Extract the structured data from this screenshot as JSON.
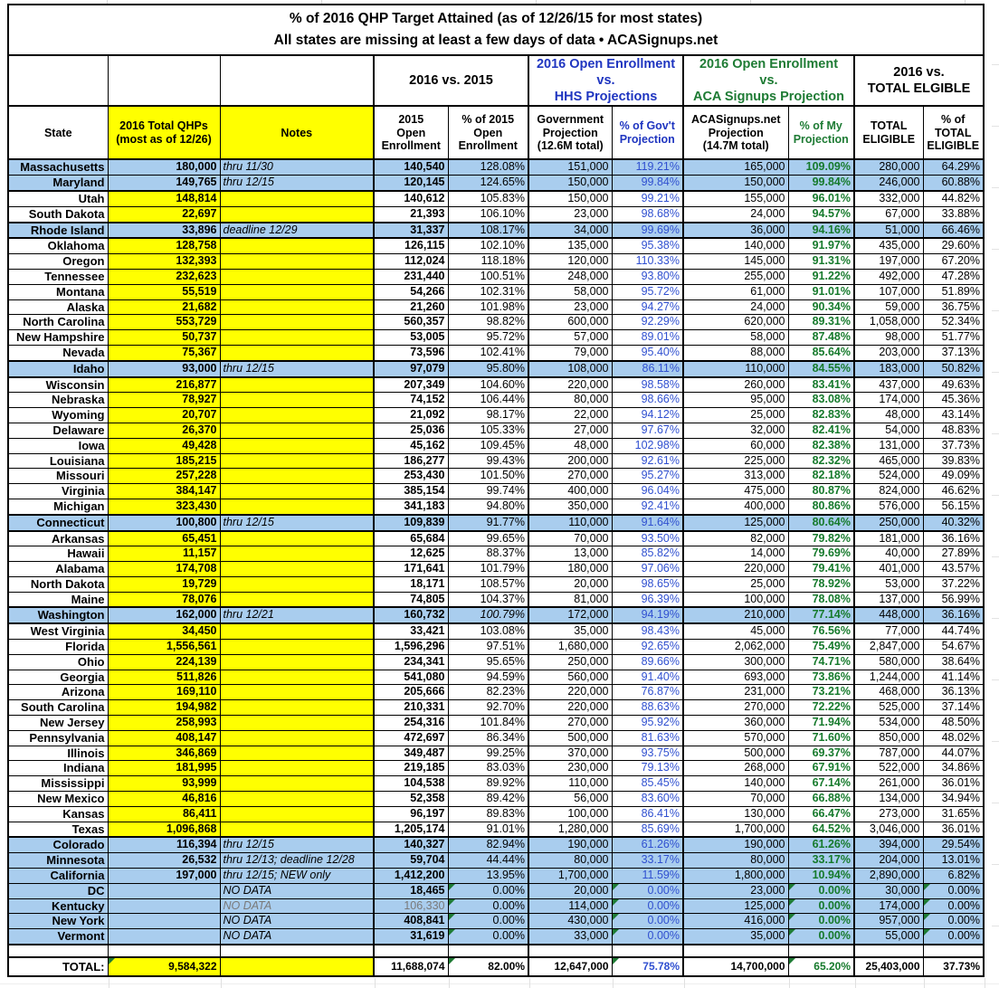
{
  "title": {
    "text": "% of 2016 QHP Target Attained (as of 12/26/15 for most states)\nAll states are missing at least a few days of data • ACASignups.net"
  },
  "groups": {
    "vs_2015": "2016 vs. 2015",
    "vs_hhs": "2016 Open Enrollment\nvs.\nHHS Projections",
    "vs_acasignups": "2016 Open Enrollment\nvs.\nACA Signups Projection",
    "vs_total_eligible": "2016 vs.\nTOTAL ELGIBLE"
  },
  "columns": [
    "State",
    "2016 Total QHPs\n(most as of 12/26)",
    "Notes",
    "2015\nOpen\nEnrollment",
    "% of 2015\nOpen\nEnrollment",
    "Government\nProjection\n(12.6M total)",
    "% of Gov't\nProjection",
    "ACASignups.net\nProjection\n(14.7M total)",
    "% of My\nProjection",
    "TOTAL\nELIGIBLE",
    "% of\nTOTAL\nELIGIBLE"
  ],
  "colors": {
    "row_highlight_blue": "#A9CDEE",
    "cell_yellow": "#FFFF00",
    "pct_gov_text_blue": "#3050D0",
    "header_hhs_blue": "#1F35C0",
    "pct_my_text_green": "#167A2C",
    "header_acas_green": "#1E7B34",
    "muted_gray": "#7a7a7a",
    "formula_flag_green": "#1E7B34"
  },
  "rows": [
    {
      "state": "Massachusetts",
      "qhp": "180,000",
      "notes": "thru 11/30",
      "e2015": "140,540",
      "p2015": "128.08%",
      "gov": "151,000",
      "pgov": "119.21%",
      "acas": "165,000",
      "pmy": "109.09%",
      "elig": "280,000",
      "pelig": "64.29%",
      "blue": true
    },
    {
      "state": "Maryland",
      "qhp": "149,765",
      "notes": "thru 12/15",
      "e2015": "120,145",
      "p2015": "124.65%",
      "gov": "150,000",
      "pgov": "99.84%",
      "acas": "150,000",
      "pmy": "99.84%",
      "elig": "246,000",
      "pelig": "60.88%",
      "blue": true
    },
    {
      "state": "Utah",
      "qhp": "148,814",
      "notes": "",
      "e2015": "140,612",
      "p2015": "105.83%",
      "gov": "150,000",
      "pgov": "99.21%",
      "acas": "155,000",
      "pmy": "96.01%",
      "elig": "332,000",
      "pelig": "44.82%"
    },
    {
      "state": "South Dakota",
      "qhp": "22,697",
      "notes": "",
      "e2015": "21,393",
      "p2015": "106.10%",
      "gov": "23,000",
      "pgov": "98.68%",
      "acas": "24,000",
      "pmy": "94.57%",
      "elig": "67,000",
      "pelig": "33.88%"
    },
    {
      "state": "Rhode Island",
      "qhp": "33,896",
      "notes": "deadline 12/29",
      "e2015": "31,337",
      "p2015": "108.17%",
      "gov": "34,000",
      "pgov": "99.69%",
      "acas": "36,000",
      "pmy": "94.16%",
      "elig": "51,000",
      "pelig": "66.46%",
      "blue": true
    },
    {
      "state": "Oklahoma",
      "qhp": "128,758",
      "notes": "",
      "e2015": "126,115",
      "p2015": "102.10%",
      "gov": "135,000",
      "pgov": "95.38%",
      "acas": "140,000",
      "pmy": "91.97%",
      "elig": "435,000",
      "pelig": "29.60%"
    },
    {
      "state": "Oregon",
      "qhp": "132,393",
      "notes": "",
      "e2015": "112,024",
      "p2015": "118.18%",
      "gov": "120,000",
      "pgov": "110.33%",
      "acas": "145,000",
      "pmy": "91.31%",
      "elig": "197,000",
      "pelig": "67.20%"
    },
    {
      "state": "Tennessee",
      "qhp": "232,623",
      "notes": "",
      "e2015": "231,440",
      "p2015": "100.51%",
      "gov": "248,000",
      "pgov": "93.80%",
      "acas": "255,000",
      "pmy": "91.22%",
      "elig": "492,000",
      "pelig": "47.28%"
    },
    {
      "state": "Montana",
      "qhp": "55,519",
      "notes": "",
      "e2015": "54,266",
      "p2015": "102.31%",
      "gov": "58,000",
      "pgov": "95.72%",
      "acas": "61,000",
      "pmy": "91.01%",
      "elig": "107,000",
      "pelig": "51.89%"
    },
    {
      "state": "Alaska",
      "qhp": "21,682",
      "notes": "",
      "e2015": "21,260",
      "p2015": "101.98%",
      "gov": "23,000",
      "pgov": "94.27%",
      "acas": "24,000",
      "pmy": "90.34%",
      "elig": "59,000",
      "pelig": "36.75%"
    },
    {
      "state": "North Carolina",
      "qhp": "553,729",
      "notes": "",
      "e2015": "560,357",
      "p2015": "98.82%",
      "gov": "600,000",
      "pgov": "92.29%",
      "acas": "620,000",
      "pmy": "89.31%",
      "elig": "1,058,000",
      "pelig": "52.34%"
    },
    {
      "state": "New Hampshire",
      "qhp": "50,737",
      "notes": "",
      "e2015": "53,005",
      "p2015": "95.72%",
      "gov": "57,000",
      "pgov": "89.01%",
      "acas": "58,000",
      "pmy": "87.48%",
      "elig": "98,000",
      "pelig": "51.77%"
    },
    {
      "state": "Nevada",
      "qhp": "75,367",
      "notes": "",
      "e2015": "73,596",
      "p2015": "102.41%",
      "gov": "79,000",
      "pgov": "95.40%",
      "acas": "88,000",
      "pmy": "85.64%",
      "elig": "203,000",
      "pelig": "37.13%"
    },
    {
      "state": "Idaho",
      "qhp": "93,000",
      "notes": "thru 12/15",
      "e2015": "97,079",
      "p2015": "95.80%",
      "gov": "108,000",
      "pgov": "86.11%",
      "acas": "110,000",
      "pmy": "84.55%",
      "elig": "183,000",
      "pelig": "50.82%",
      "blue": true
    },
    {
      "state": "Wisconsin",
      "qhp": "216,877",
      "notes": "",
      "e2015": "207,349",
      "p2015": "104.60%",
      "gov": "220,000",
      "pgov": "98.58%",
      "acas": "260,000",
      "pmy": "83.41%",
      "elig": "437,000",
      "pelig": "49.63%"
    },
    {
      "state": "Nebraska",
      "qhp": "78,927",
      "notes": "",
      "e2015": "74,152",
      "p2015": "106.44%",
      "gov": "80,000",
      "pgov": "98.66%",
      "acas": "95,000",
      "pmy": "83.08%",
      "elig": "174,000",
      "pelig": "45.36%"
    },
    {
      "state": "Wyoming",
      "qhp": "20,707",
      "notes": "",
      "e2015": "21,092",
      "p2015": "98.17%",
      "gov": "22,000",
      "pgov": "94.12%",
      "acas": "25,000",
      "pmy": "82.83%",
      "elig": "48,000",
      "pelig": "43.14%"
    },
    {
      "state": "Delaware",
      "qhp": "26,370",
      "notes": "",
      "e2015": "25,036",
      "p2015": "105.33%",
      "gov": "27,000",
      "pgov": "97.67%",
      "acas": "32,000",
      "pmy": "82.41%",
      "elig": "54,000",
      "pelig": "48.83%"
    },
    {
      "state": "Iowa",
      "qhp": "49,428",
      "notes": "",
      "e2015": "45,162",
      "p2015": "109.45%",
      "gov": "48,000",
      "pgov": "102.98%",
      "acas": "60,000",
      "pmy": "82.38%",
      "elig": "131,000",
      "pelig": "37.73%"
    },
    {
      "state": "Louisiana",
      "qhp": "185,215",
      "notes": "",
      "e2015": "186,277",
      "p2015": "99.43%",
      "gov": "200,000",
      "pgov": "92.61%",
      "acas": "225,000",
      "pmy": "82.32%",
      "elig": "465,000",
      "pelig": "39.83%"
    },
    {
      "state": "Missouri",
      "qhp": "257,228",
      "notes": "",
      "e2015": "253,430",
      "p2015": "101.50%",
      "gov": "270,000",
      "pgov": "95.27%",
      "acas": "313,000",
      "pmy": "82.18%",
      "elig": "524,000",
      "pelig": "49.09%"
    },
    {
      "state": "Virginia",
      "qhp": "384,147",
      "notes": "",
      "e2015": "385,154",
      "p2015": "99.74%",
      "gov": "400,000",
      "pgov": "96.04%",
      "acas": "475,000",
      "pmy": "80.87%",
      "elig": "824,000",
      "pelig": "46.62%"
    },
    {
      "state": "Michigan",
      "qhp": "323,430",
      "notes": "",
      "e2015": "341,183",
      "p2015": "94.80%",
      "gov": "350,000",
      "pgov": "92.41%",
      "acas": "400,000",
      "pmy": "80.86%",
      "elig": "576,000",
      "pelig": "56.15%"
    },
    {
      "state": "Connecticut",
      "qhp": "100,800",
      "notes": "thru 12/15",
      "e2015": "109,839",
      "p2015": "91.77%",
      "gov": "110,000",
      "pgov": "91.64%",
      "acas": "125,000",
      "pmy": "80.64%",
      "elig": "250,000",
      "pelig": "40.32%",
      "blue": true
    },
    {
      "state": "Arkansas",
      "qhp": "65,451",
      "notes": "",
      "e2015": "65,684",
      "p2015": "99.65%",
      "gov": "70,000",
      "pgov": "93.50%",
      "acas": "82,000",
      "pmy": "79.82%",
      "elig": "181,000",
      "pelig": "36.16%"
    },
    {
      "state": "Hawaii",
      "qhp": "11,157",
      "notes": "",
      "e2015": "12,625",
      "p2015": "88.37%",
      "gov": "13,000",
      "pgov": "85.82%",
      "acas": "14,000",
      "pmy": "79.69%",
      "elig": "40,000",
      "pelig": "27.89%"
    },
    {
      "state": "Alabama",
      "qhp": "174,708",
      "notes": "",
      "e2015": "171,641",
      "p2015": "101.79%",
      "gov": "180,000",
      "pgov": "97.06%",
      "acas": "220,000",
      "pmy": "79.41%",
      "elig": "401,000",
      "pelig": "43.57%"
    },
    {
      "state": "North Dakota",
      "qhp": "19,729",
      "notes": "",
      "e2015": "18,171",
      "p2015": "108.57%",
      "gov": "20,000",
      "pgov": "98.65%",
      "acas": "25,000",
      "pmy": "78.92%",
      "elig": "53,000",
      "pelig": "37.22%"
    },
    {
      "state": "Maine",
      "qhp": "78,076",
      "notes": "",
      "e2015": "74,805",
      "p2015": "104.37%",
      "gov": "81,000",
      "pgov": "96.39%",
      "acas": "100,000",
      "pmy": "78.08%",
      "elig": "137,000",
      "pelig": "56.99%"
    },
    {
      "state": "Washington",
      "qhp": "162,000",
      "notes": "thru 12/21",
      "e2015": "160,732",
      "p2015": "100.79%",
      "gov": "172,000",
      "pgov": "94.19%",
      "acas": "210,000",
      "pmy": "77.14%",
      "elig": "448,000",
      "pelig": "36.16%",
      "blue": true,
      "ip": true
    },
    {
      "state": "West Virginia",
      "qhp": "34,450",
      "notes": "",
      "e2015": "33,421",
      "p2015": "103.08%",
      "gov": "35,000",
      "pgov": "98.43%",
      "acas": "45,000",
      "pmy": "76.56%",
      "elig": "77,000",
      "pelig": "44.74%"
    },
    {
      "state": "Florida",
      "qhp": "1,556,561",
      "notes": "",
      "e2015": "1,596,296",
      "p2015": "97.51%",
      "gov": "1,680,000",
      "pgov": "92.65%",
      "acas": "2,062,000",
      "pmy": "75.49%",
      "elig": "2,847,000",
      "pelig": "54.67%"
    },
    {
      "state": "Ohio",
      "qhp": "224,139",
      "notes": "",
      "e2015": "234,341",
      "p2015": "95.65%",
      "gov": "250,000",
      "pgov": "89.66%",
      "acas": "300,000",
      "pmy": "74.71%",
      "elig": "580,000",
      "pelig": "38.64%"
    },
    {
      "state": "Georgia",
      "qhp": "511,826",
      "notes": "",
      "e2015": "541,080",
      "p2015": "94.59%",
      "gov": "560,000",
      "pgov": "91.40%",
      "acas": "693,000",
      "pmy": "73.86%",
      "elig": "1,244,000",
      "pelig": "41.14%"
    },
    {
      "state": "Arizona",
      "qhp": "169,110",
      "notes": "",
      "e2015": "205,666",
      "p2015": "82.23%",
      "gov": "220,000",
      "pgov": "76.87%",
      "acas": "231,000",
      "pmy": "73.21%",
      "elig": "468,000",
      "pelig": "36.13%"
    },
    {
      "state": "South Carolina",
      "qhp": "194,982",
      "notes": "",
      "e2015": "210,331",
      "p2015": "92.70%",
      "gov": "220,000",
      "pgov": "88.63%",
      "acas": "270,000",
      "pmy": "72.22%",
      "elig": "525,000",
      "pelig": "37.14%"
    },
    {
      "state": "New Jersey",
      "qhp": "258,993",
      "notes": "",
      "e2015": "254,316",
      "p2015": "101.84%",
      "gov": "270,000",
      "pgov": "95.92%",
      "acas": "360,000",
      "pmy": "71.94%",
      "elig": "534,000",
      "pelig": "48.50%"
    },
    {
      "state": "Pennsylvania",
      "qhp": "408,147",
      "notes": "",
      "e2015": "472,697",
      "p2015": "86.34%",
      "gov": "500,000",
      "pgov": "81.63%",
      "acas": "570,000",
      "pmy": "71.60%",
      "elig": "850,000",
      "pelig": "48.02%"
    },
    {
      "state": "Illinois",
      "qhp": "346,869",
      "notes": "",
      "e2015": "349,487",
      "p2015": "99.25%",
      "gov": "370,000",
      "pgov": "93.75%",
      "acas": "500,000",
      "pmy": "69.37%",
      "elig": "787,000",
      "pelig": "44.07%"
    },
    {
      "state": "Indiana",
      "qhp": "181,995",
      "notes": "",
      "e2015": "219,185",
      "p2015": "83.03%",
      "gov": "230,000",
      "pgov": "79.13%",
      "acas": "268,000",
      "pmy": "67.91%",
      "elig": "522,000",
      "pelig": "34.86%"
    },
    {
      "state": "Mississippi",
      "qhp": "93,999",
      "notes": "",
      "e2015": "104,538",
      "p2015": "89.92%",
      "gov": "110,000",
      "pgov": "85.45%",
      "acas": "140,000",
      "pmy": "67.14%",
      "elig": "261,000",
      "pelig": "36.01%"
    },
    {
      "state": "New Mexico",
      "qhp": "46,816",
      "notes": "",
      "e2015": "52,358",
      "p2015": "89.42%",
      "gov": "56,000",
      "pgov": "83.60%",
      "acas": "70,000",
      "pmy": "66.88%",
      "elig": "134,000",
      "pelig": "34.94%"
    },
    {
      "state": "Kansas",
      "qhp": "86,411",
      "notes": "",
      "e2015": "96,197",
      "p2015": "89.83%",
      "gov": "100,000",
      "pgov": "86.41%",
      "acas": "130,000",
      "pmy": "66.47%",
      "elig": "273,000",
      "pelig": "31.65%"
    },
    {
      "state": "Texas",
      "qhp": "1,096,868",
      "notes": "",
      "e2015": "1,205,174",
      "p2015": "91.01%",
      "gov": "1,280,000",
      "pgov": "85.69%",
      "acas": "1,700,000",
      "pmy": "64.52%",
      "elig": "3,046,000",
      "pelig": "36.01%"
    },
    {
      "state": "Colorado",
      "qhp": "116,394",
      "notes": "thru 12/15",
      "e2015": "140,327",
      "p2015": "82.94%",
      "gov": "190,000",
      "pgov": "61.26%",
      "acas": "190,000",
      "pmy": "61.26%",
      "elig": "394,000",
      "pelig": "29.54%",
      "blue": true
    },
    {
      "state": "Minnesota",
      "qhp": "26,532",
      "notes": "thru 12/13; deadline 12/28",
      "e2015": "59,704",
      "p2015": "44.44%",
      "gov": "80,000",
      "pgov": "33.17%",
      "acas": "80,000",
      "pmy": "33.17%",
      "elig": "204,000",
      "pelig": "13.01%",
      "blue": true
    },
    {
      "state": "California",
      "qhp": "197,000",
      "notes": "thru 12/15; NEW only",
      "e2015": "1,412,200",
      "p2015": "13.95%",
      "gov": "1,700,000",
      "pgov": "11.59%",
      "acas": "1,800,000",
      "pmy": "10.94%",
      "elig": "2,890,000",
      "pelig": "6.82%",
      "blue": true
    },
    {
      "state": "DC",
      "qhp": "",
      "notes": "NO DATA",
      "e2015": "18,465",
      "p2015": "0.00%",
      "gov": "20,000",
      "pgov": "0.00%",
      "acas": "23,000",
      "pmy": "0.00%",
      "elig": "30,000",
      "pelig": "0.00%",
      "blue": true,
      "tri": true
    },
    {
      "state": "Kentucky",
      "qhp": "",
      "notes": "NO DATA",
      "e2015": "106,330",
      "p2015": "0.00%",
      "gov": "114,000",
      "pgov": "0.00%",
      "acas": "125,000",
      "pmy": "0.00%",
      "elig": "174,000",
      "pelig": "0.00%",
      "blue": true,
      "tri": true,
      "muted": true
    },
    {
      "state": "New York",
      "qhp": "",
      "notes": "NO DATA",
      "e2015": "408,841",
      "p2015": "0.00%",
      "gov": "430,000",
      "pgov": "0.00%",
      "acas": "416,000",
      "pmy": "0.00%",
      "elig": "957,000",
      "pelig": "0.00%",
      "blue": true,
      "tri": true
    },
    {
      "state": "Vermont",
      "qhp": "",
      "notes": "NO DATA",
      "e2015": "31,619",
      "p2015": "0.00%",
      "gov": "33,000",
      "pgov": "0.00%",
      "acas": "35,000",
      "pmy": "0.00%",
      "elig": "55,000",
      "pelig": "0.00%",
      "blue": true,
      "tri": true
    }
  ],
  "total": {
    "label": "TOTAL:",
    "qhp": "9,584,322",
    "notes": "",
    "e2015": "11,688,074",
    "p2015": "82.00%",
    "gov": "12,647,000",
    "pgov": "75.78%",
    "acas": "14,700,000",
    "pmy": "65.20%",
    "elig": "25,403,000",
    "pelig": "37.73%"
  }
}
